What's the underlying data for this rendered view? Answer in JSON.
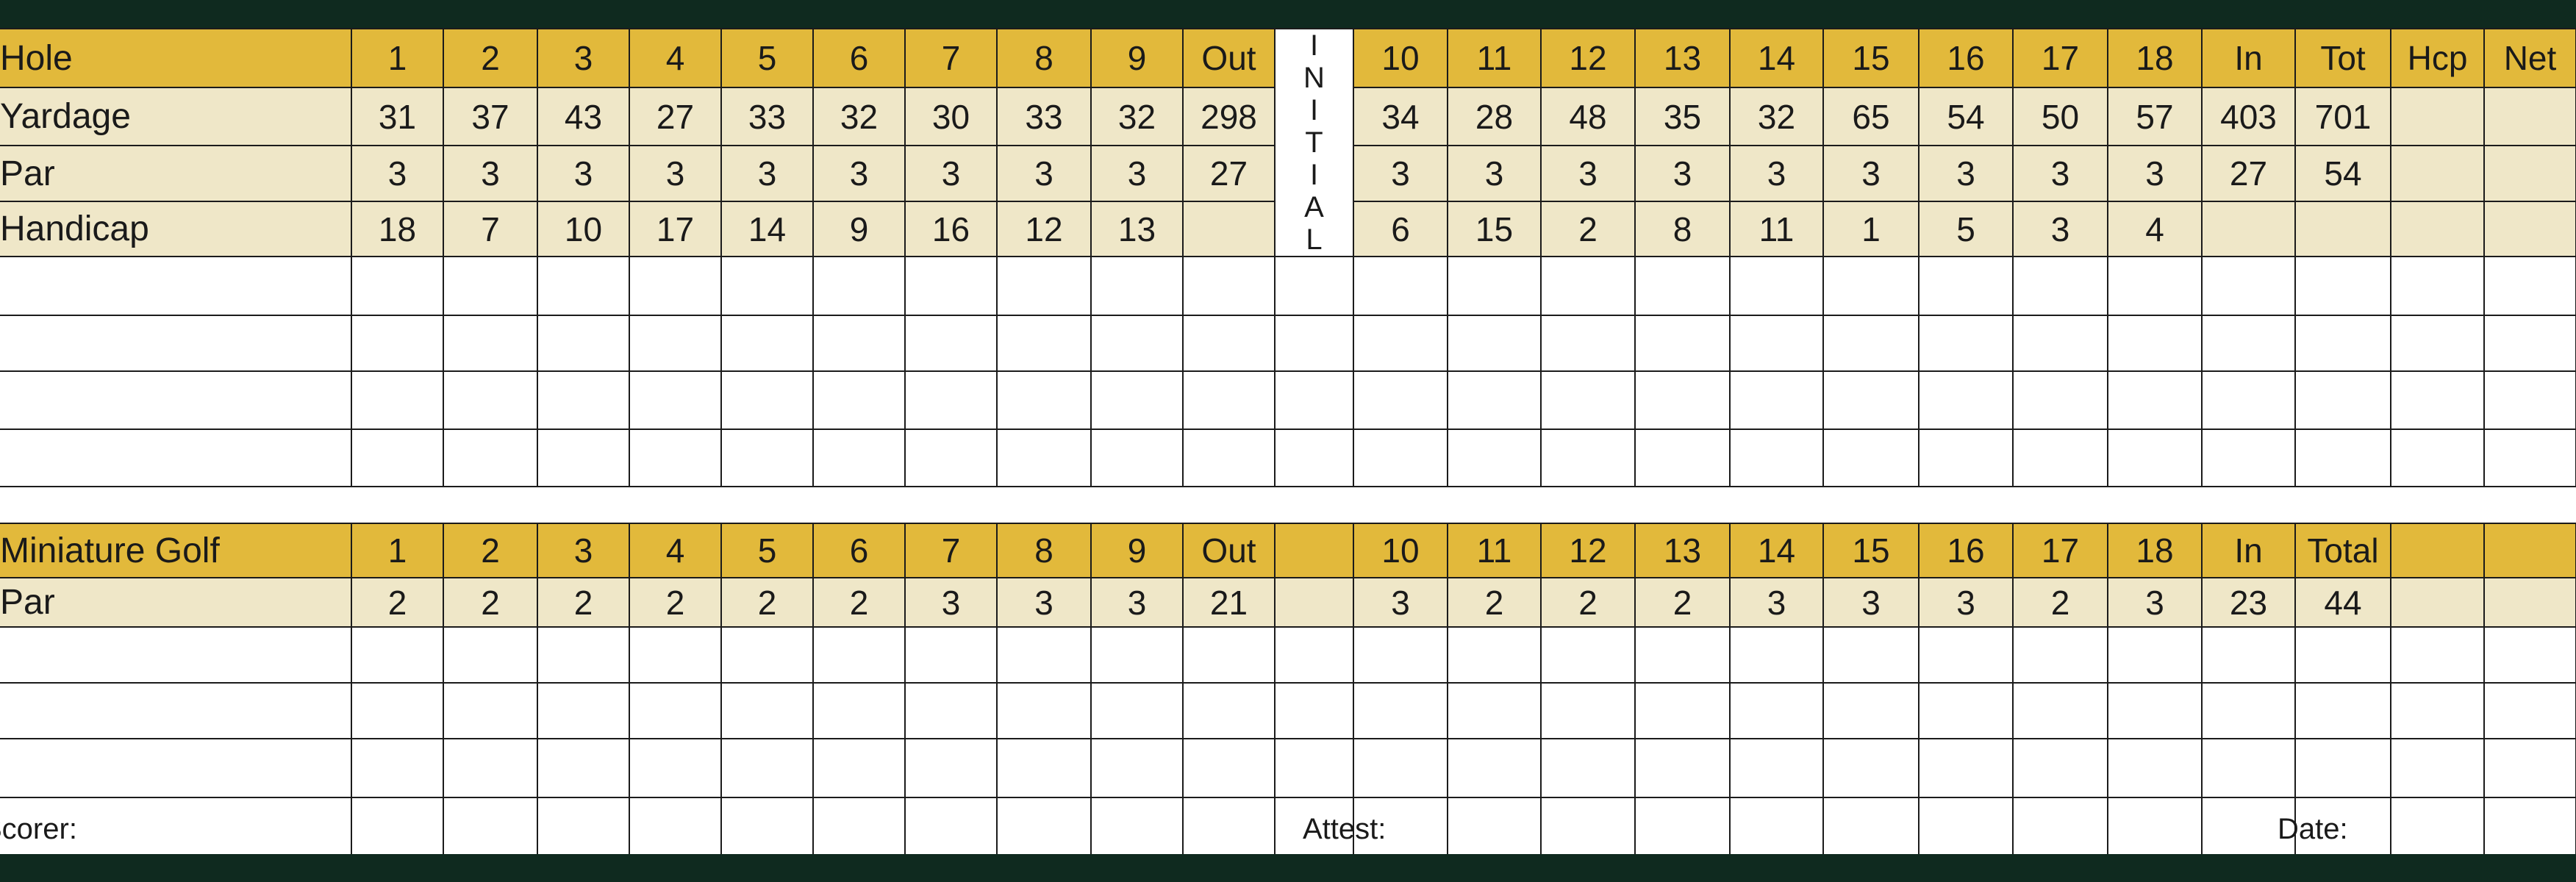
{
  "colors": {
    "band": "#0f2a1f",
    "header": "#e2b93b",
    "info": "#efe7c8"
  },
  "top": {
    "header": [
      "Hole",
      "1",
      "2",
      "3",
      "4",
      "5",
      "6",
      "7",
      "8",
      "9",
      "Out",
      "10",
      "11",
      "12",
      "13",
      "14",
      "15",
      "16",
      "17",
      "18",
      "In",
      "Tot",
      "Hcp",
      "Net"
    ],
    "initial_label": [
      "I",
      "N",
      "I",
      "T",
      "I",
      "A",
      "L"
    ],
    "rows": [
      [
        "Yardage",
        "31",
        "37",
        "43",
        "27",
        "33",
        "32",
        "30",
        "33",
        "32",
        "298",
        "34",
        "28",
        "48",
        "35",
        "32",
        "65",
        "54",
        "50",
        "57",
        "403",
        "701",
        "",
        ""
      ],
      [
        "Par",
        "3",
        "3",
        "3",
        "3",
        "3",
        "3",
        "3",
        "3",
        "3",
        "27",
        "3",
        "3",
        "3",
        "3",
        "3",
        "3",
        "3",
        "3",
        "3",
        "27",
        "54",
        "",
        ""
      ],
      [
        "Handicap",
        "18",
        "7",
        "10",
        "17",
        "14",
        "9",
        "16",
        "12",
        "13",
        "",
        "6",
        "15",
        "2",
        "8",
        "11",
        "1",
        "5",
        "3",
        "4",
        "",
        "",
        "",
        ""
      ]
    ],
    "blank_rows": 4
  },
  "mini": {
    "header": [
      "Miniature Golf",
      "1",
      "2",
      "3",
      "4",
      "5",
      "6",
      "7",
      "8",
      "9",
      "Out",
      "10",
      "11",
      "12",
      "13",
      "14",
      "15",
      "16",
      "17",
      "18",
      "In",
      "Total",
      "",
      ""
    ],
    "rows": [
      [
        "Par",
        "2",
        "2",
        "2",
        "2",
        "2",
        "2",
        "3",
        "3",
        "3",
        "21",
        "3",
        "2",
        "2",
        "2",
        "3",
        "3",
        "3",
        "2",
        "3",
        "23",
        "44",
        "",
        ""
      ]
    ],
    "blank_rows": 4
  },
  "footer": {
    "scorer": "Scorer:",
    "attest": "Attest:",
    "date": "Date:"
  }
}
